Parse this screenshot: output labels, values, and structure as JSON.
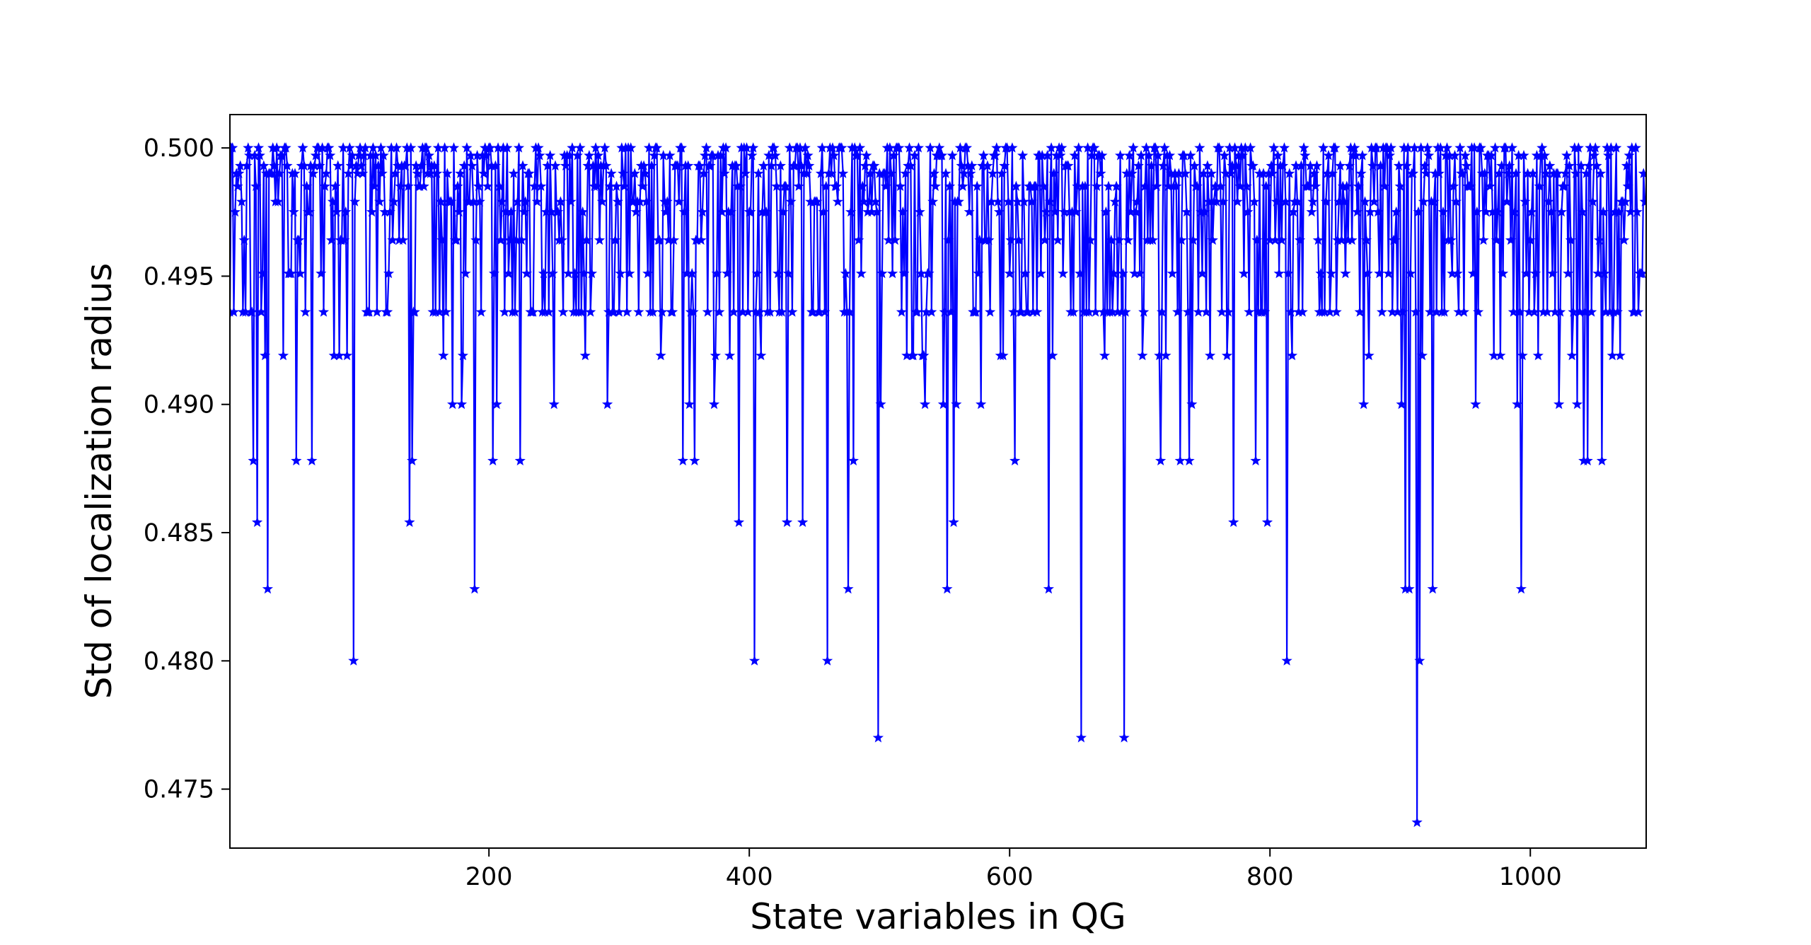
{
  "chart_data": {
    "type": "line",
    "marker": "star",
    "color": "#0000ff",
    "title": "",
    "xlabel": "State variables in QG",
    "ylabel": "Std of localization radius",
    "xlim": [
      1,
      1089
    ],
    "ylim": [
      0.4727,
      0.5013
    ],
    "xticks": [
      200,
      400,
      600,
      800,
      1000
    ],
    "xtick_labels": [
      "200",
      "400",
      "600",
      "800",
      "1000"
    ],
    "yticks": [
      0.475,
      0.48,
      0.485,
      0.49,
      0.495,
      0.5
    ],
    "ytick_labels": [
      "0.475",
      "0.480",
      "0.485",
      "0.490",
      "0.495",
      "0.500"
    ],
    "grid": false,
    "legend": false,
    "n_points": 1089,
    "level_values": [
      0.5,
      0.4997,
      0.4993,
      0.499,
      0.4985,
      0.4979,
      0.4975,
      0.4964,
      0.4951,
      0.4936,
      0.4919,
      0.49,
      0.4878,
      0.4854,
      0.4828,
      0.48,
      0.477,
      0.4737
    ],
    "level_weights": [
      14,
      8,
      9,
      8,
      8,
      8,
      8,
      6,
      6,
      5,
      4,
      3,
      2,
      1,
      1,
      1,
      1,
      1
    ],
    "dips": [
      {
        "x": 19,
        "y": 0.4878
      },
      {
        "x": 22,
        "y": 0.4854
      },
      {
        "x": 30,
        "y": 0.4828
      },
      {
        "x": 52,
        "y": 0.4878
      },
      {
        "x": 64,
        "y": 0.4878
      },
      {
        "x": 96,
        "y": 0.48
      },
      {
        "x": 139,
        "y": 0.4854
      },
      {
        "x": 141,
        "y": 0.4878
      },
      {
        "x": 172,
        "y": 0.49
      },
      {
        "x": 179,
        "y": 0.49
      },
      {
        "x": 189,
        "y": 0.4828
      },
      {
        "x": 203,
        "y": 0.4878
      },
      {
        "x": 206,
        "y": 0.49
      },
      {
        "x": 224,
        "y": 0.4878
      },
      {
        "x": 250,
        "y": 0.49
      },
      {
        "x": 291,
        "y": 0.49
      },
      {
        "x": 349,
        "y": 0.4878
      },
      {
        "x": 354,
        "y": 0.49
      },
      {
        "x": 358,
        "y": 0.4878
      },
      {
        "x": 373,
        "y": 0.49
      },
      {
        "x": 392,
        "y": 0.4854
      },
      {
        "x": 404,
        "y": 0.48
      },
      {
        "x": 429,
        "y": 0.4854
      },
      {
        "x": 441,
        "y": 0.4854
      },
      {
        "x": 460,
        "y": 0.48
      },
      {
        "x": 476,
        "y": 0.4828
      },
      {
        "x": 480,
        "y": 0.4878
      },
      {
        "x": 499,
        "y": 0.477
      },
      {
        "x": 501,
        "y": 0.49
      },
      {
        "x": 535,
        "y": 0.49
      },
      {
        "x": 549,
        "y": 0.49
      },
      {
        "x": 552,
        "y": 0.4828
      },
      {
        "x": 557,
        "y": 0.4854
      },
      {
        "x": 559,
        "y": 0.49
      },
      {
        "x": 578,
        "y": 0.49
      },
      {
        "x": 604,
        "y": 0.4878
      },
      {
        "x": 630,
        "y": 0.4828
      },
      {
        "x": 655,
        "y": 0.477
      },
      {
        "x": 688,
        "y": 0.477
      },
      {
        "x": 716,
        "y": 0.4878
      },
      {
        "x": 731,
        "y": 0.4878
      },
      {
        "x": 738,
        "y": 0.4878
      },
      {
        "x": 740,
        "y": 0.49
      },
      {
        "x": 772,
        "y": 0.4854
      },
      {
        "x": 789,
        "y": 0.4878
      },
      {
        "x": 798,
        "y": 0.4854
      },
      {
        "x": 813,
        "y": 0.48
      },
      {
        "x": 872,
        "y": 0.49
      },
      {
        "x": 901,
        "y": 0.49
      },
      {
        "x": 904,
        "y": 0.4828
      },
      {
        "x": 907,
        "y": 0.4828
      },
      {
        "x": 913,
        "y": 0.4737
      },
      {
        "x": 915,
        "y": 0.48
      },
      {
        "x": 925,
        "y": 0.4828
      },
      {
        "x": 958,
        "y": 0.49
      },
      {
        "x": 990,
        "y": 0.49
      },
      {
        "x": 993,
        "y": 0.4828
      },
      {
        "x": 1022,
        "y": 0.49
      },
      {
        "x": 1036,
        "y": 0.49
      },
      {
        "x": 1041,
        "y": 0.4878
      },
      {
        "x": 1044,
        "y": 0.4878
      },
      {
        "x": 1055,
        "y": 0.4878
      }
    ]
  }
}
